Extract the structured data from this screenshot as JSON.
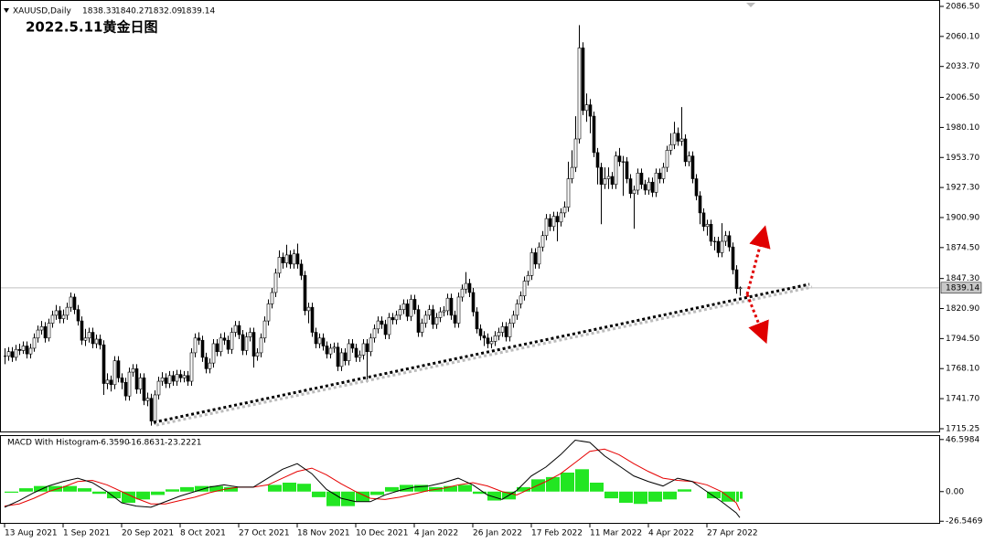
{
  "header": {
    "symbol": "XAUUSD,Daily",
    "ohlc": [
      "1838.33",
      "1840.27",
      "1832.09",
      "1839.14"
    ],
    "title": "2022.5.11黄金日图"
  },
  "chart_data": [
    {
      "type": "candlestick",
      "close": [
        1779,
        1783,
        1778,
        1785,
        1784,
        1788,
        1781,
        1786,
        1795,
        1802,
        1805,
        1795,
        1808,
        1815,
        1819,
        1812,
        1815,
        1822,
        1831,
        1820,
        1810,
        1793,
        1795,
        1800,
        1790,
        1794,
        1789,
        1755,
        1758,
        1754,
        1775,
        1760,
        1756,
        1744,
        1765,
        1768,
        1750,
        1760,
        1740,
        1742,
        1722,
        1745,
        1757,
        1760,
        1755,
        1762,
        1757,
        1763,
        1760,
        1762,
        1757,
        1782,
        1795,
        1793,
        1778,
        1768,
        1773,
        1790,
        1783,
        1795,
        1793,
        1785,
        1800,
        1806,
        1798,
        1784,
        1796,
        1800,
        1779,
        1782,
        1795,
        1810,
        1825,
        1835,
        1852,
        1866,
        1861,
        1868,
        1860,
        1869,
        1860,
        1850,
        1819,
        1822,
        1800,
        1790,
        1795,
        1788,
        1781,
        1786,
        1787,
        1770,
        1782,
        1775,
        1790,
        1786,
        1778,
        1780,
        1790,
        1783,
        1795,
        1803,
        1810,
        1807,
        1798,
        1813,
        1811,
        1815,
        1820,
        1825,
        1814,
        1829,
        1820,
        1800,
        1808,
        1815,
        1820,
        1807,
        1813,
        1818,
        1819,
        1830,
        1815,
        1808,
        1831,
        1838,
        1843,
        1835,
        1818,
        1803,
        1797,
        1795,
        1790,
        1792,
        1797,
        1800,
        1805,
        1796,
        1808,
        1815,
        1825,
        1832,
        1845,
        1850,
        1870,
        1860,
        1875,
        1885,
        1900,
        1893,
        1902,
        1897,
        1905,
        1910,
        1935,
        1945,
        1970,
        2050,
        1995,
        2000,
        1990,
        1958,
        1945,
        1930,
        1935,
        1937,
        1930,
        1955,
        1950,
        1950,
        1935,
        1922,
        1925,
        1940,
        1930,
        1925,
        1932,
        1923,
        1940,
        1935,
        1945,
        1960,
        1965,
        1975,
        1968,
        1970,
        1950,
        1955,
        1935,
        1920,
        1905,
        1893,
        1895,
        1880,
        1880,
        1870,
        1880,
        1885,
        1875,
        1855,
        1838.33,
        1839.14
      ],
      "high": [
        1786,
        1787,
        1787,
        1789,
        1790,
        1792,
        1792,
        1790,
        1799,
        1806,
        1810,
        1809,
        1812,
        1819,
        1824,
        1823,
        1820,
        1826,
        1835,
        1834,
        1824,
        1814,
        1803,
        1804,
        1804,
        1798,
        1798,
        1793,
        1764,
        1762,
        1779,
        1779,
        1764,
        1760,
        1769,
        1772,
        1772,
        1764,
        1764,
        1747,
        1746,
        1749,
        1761,
        1765,
        1764,
        1766,
        1766,
        1767,
        1767,
        1766,
        1766,
        1786,
        1799,
        1800,
        1797,
        1782,
        1777,
        1794,
        1794,
        1799,
        1800,
        1797,
        1804,
        1810,
        1810,
        1802,
        1800,
        1804,
        1804,
        1786,
        1799,
        1814,
        1829,
        1839,
        1856,
        1872,
        1870,
        1877,
        1872,
        1873,
        1878,
        1864,
        1854,
        1826,
        1826,
        1804,
        1799,
        1799,
        1792,
        1790,
        1791,
        1791,
        1786,
        1786,
        1794,
        1794,
        1790,
        1784,
        1794,
        1794,
        1799,
        1807,
        1814,
        1814,
        1811,
        1817,
        1817,
        1819,
        1824,
        1829,
        1829,
        1833,
        1833,
        1824,
        1812,
        1819,
        1824,
        1824,
        1817,
        1822,
        1823,
        1834,
        1834,
        1819,
        1835,
        1842,
        1853,
        1847,
        1839,
        1822,
        1807,
        1801,
        1799,
        1796,
        1801,
        1804,
        1809,
        1809,
        1812,
        1819,
        1829,
        1836,
        1849,
        1854,
        1874,
        1874,
        1879,
        1889,
        1904,
        1904,
        1906,
        1906,
        1909,
        1915,
        1950,
        1960,
        1990,
        2070,
        2055,
        2010,
        2005,
        1994,
        1962,
        1949,
        1945,
        1945,
        1941,
        1959,
        1962,
        1955,
        1954,
        1939,
        1929,
        1944,
        1944,
        1934,
        1936,
        1936,
        1944,
        1944,
        1949,
        1964,
        1975,
        1985,
        1980,
        1998,
        1974,
        1959,
        1959,
        1939,
        1924,
        1909,
        1899,
        1899,
        1884,
        1884,
        1896,
        1889,
        1889,
        1879,
        1859,
        1840.27
      ],
      "low": [
        1772,
        1775,
        1774,
        1775,
        1780,
        1781,
        1777,
        1777,
        1783,
        1791,
        1798,
        1791,
        1792,
        1804,
        1811,
        1808,
        1808,
        1811,
        1818,
        1816,
        1806,
        1789,
        1788,
        1791,
        1786,
        1786,
        1785,
        1745,
        1750,
        1748,
        1750,
        1756,
        1750,
        1740,
        1740,
        1761,
        1746,
        1746,
        1736,
        1735,
        1718,
        1719,
        1741,
        1753,
        1751,
        1751,
        1753,
        1753,
        1756,
        1756,
        1753,
        1753,
        1778,
        1789,
        1774,
        1764,
        1764,
        1769,
        1779,
        1779,
        1789,
        1781,
        1781,
        1796,
        1794,
        1780,
        1780,
        1792,
        1769,
        1775,
        1778,
        1791,
        1806,
        1821,
        1831,
        1848,
        1856,
        1857,
        1856,
        1856,
        1856,
        1846,
        1815,
        1808,
        1796,
        1786,
        1786,
        1784,
        1777,
        1777,
        1782,
        1766,
        1766,
        1771,
        1771,
        1782,
        1774,
        1774,
        1776,
        1756,
        1779,
        1791,
        1799,
        1803,
        1794,
        1794,
        1807,
        1807,
        1811,
        1816,
        1810,
        1810,
        1816,
        1796,
        1796,
        1804,
        1811,
        1803,
        1803,
        1809,
        1814,
        1815,
        1811,
        1804,
        1804,
        1827,
        1834,
        1831,
        1814,
        1799,
        1793,
        1788,
        1786,
        1786,
        1788,
        1793,
        1796,
        1792,
        1792,
        1804,
        1811,
        1821,
        1828,
        1841,
        1846,
        1856,
        1856,
        1871,
        1881,
        1889,
        1889,
        1880,
        1893,
        1901,
        1906,
        1931,
        1941,
        1966,
        1991,
        1985,
        1975,
        1954,
        1930,
        1895,
        1926,
        1926,
        1926,
        1926,
        1946,
        1920,
        1931,
        1918,
        1891,
        1921,
        1926,
        1921,
        1921,
        1919,
        1919,
        1931,
        1931,
        1941,
        1956,
        1961,
        1964,
        1964,
        1946,
        1946,
        1931,
        1916,
        1895,
        1889,
        1885,
        1876,
        1872,
        1866,
        1866,
        1876,
        1871,
        1851,
        1834,
        1832.09
      ],
      "ylim": [
        1715.25,
        2086.5
      ],
      "yticks": [
        {
          "value": 2086.5,
          "label": "2086.50"
        },
        {
          "value": 2060.1,
          "label": "2060.10"
        },
        {
          "value": 2033.7,
          "label": "2033.70"
        },
        {
          "value": 2006.5,
          "label": "2006.50"
        },
        {
          "value": 1980.1,
          "label": "1980.10"
        },
        {
          "value": 1953.7,
          "label": "1953.70"
        },
        {
          "value": 1927.3,
          "label": "1927.30"
        },
        {
          "value": 1900.9,
          "label": "1900.90"
        },
        {
          "value": 1874.5,
          "label": "1874.50"
        },
        {
          "value": 1847.3,
          "label": "1847.30"
        },
        {
          "value": 1820.9,
          "label": "1820.90"
        },
        {
          "value": 1794.5,
          "label": "1794.50"
        },
        {
          "value": 1768.1,
          "label": "1768.10"
        },
        {
          "value": 1741.7,
          "label": "1741.70"
        },
        {
          "value": 1715.25,
          "label": "1715.25"
        }
      ],
      "xticks": [
        {
          "value": 0,
          "label": "13 Aug 2021"
        },
        {
          "value": 16,
          "label": "1 Sep 2021"
        },
        {
          "value": 32,
          "label": "20 Sep 2021"
        },
        {
          "value": 48,
          "label": "8 Oct 2021"
        },
        {
          "value": 64,
          "label": "27 Oct 2021"
        },
        {
          "value": 80,
          "label": "18 Nov 2021"
        },
        {
          "value": 96,
          "label": "10 Dec 2021"
        },
        {
          "value": 112,
          "label": "4 Jan 2022"
        },
        {
          "value": 128,
          "label": "26 Jan 2022"
        },
        {
          "value": 144,
          "label": "17 Feb 2022"
        },
        {
          "value": 160,
          "label": "11 Mar 2022"
        },
        {
          "value": 176,
          "label": "4 Apr 2022"
        },
        {
          "value": 192,
          "label": "27 Apr 2022"
        }
      ]
    },
    {
      "type": "macd",
      "title": "MACD With Histogram",
      "readout": [
        "-6.3590",
        "-16.8631",
        "-23.2221"
      ],
      "x": [
        0,
        4,
        8,
        12,
        16,
        20,
        24,
        28,
        32,
        36,
        40,
        44,
        48,
        52,
        56,
        60,
        64,
        68,
        72,
        76,
        80,
        84,
        88,
        92,
        96,
        100,
        104,
        108,
        112,
        116,
        120,
        124,
        128,
        132,
        136,
        140,
        144,
        148,
        152,
        156,
        160,
        164,
        168,
        172,
        176,
        180,
        184,
        188,
        192,
        196,
        200,
        201
      ],
      "histogram": [
        -1,
        3,
        5,
        5,
        5,
        3,
        -2,
        -6,
        -10,
        -7,
        -3,
        2,
        4,
        5,
        5,
        4,
        0,
        0,
        6,
        8,
        7,
        -5,
        -13,
        -13,
        -9,
        -3,
        4,
        6,
        6,
        4,
        5,
        6,
        -2,
        -8,
        -7,
        4,
        11,
        13,
        17,
        20,
        8,
        -6,
        -10,
        -11,
        -9,
        -7,
        2,
        0,
        -6,
        -9,
        -9,
        -6.359
      ],
      "macd": [
        -14,
        -8,
        -1,
        5,
        9,
        12,
        8,
        0,
        -10,
        -13,
        -14,
        -9,
        -4,
        0,
        4,
        6,
        4,
        4,
        12,
        20,
        25,
        16,
        2,
        -6,
        -9,
        -9,
        -3,
        1,
        4,
        5,
        8,
        12,
        6,
        -3,
        -7,
        1,
        14,
        22,
        33,
        46,
        44,
        32,
        23,
        14,
        9,
        5,
        12,
        9,
        0,
        -9,
        -19,
        -23.2221
      ],
      "signal": [
        -13,
        -11,
        -6,
        0,
        4,
        9,
        10,
        6,
        0,
        -6,
        -11,
        -11,
        -8,
        -5,
        -1,
        2,
        4,
        4,
        6,
        12,
        18,
        21,
        15,
        7,
        0,
        -6,
        -7,
        -5,
        -2,
        1,
        3,
        6,
        8,
        5,
        0,
        -3,
        3,
        9,
        16,
        26,
        36,
        38,
        33,
        25,
        18,
        12,
        10,
        9,
        6,
        0,
        -10,
        -16.8631
      ],
      "histogram_color": "#22e622",
      "macd_color": "#000000",
      "signal_color": "#e60000",
      "ylim": [
        -28,
        49.7
      ],
      "yticks": [
        {
          "value": 46.5984,
          "label": "46.5984"
        },
        {
          "value": 0,
          "label": "0.00"
        },
        {
          "value": -26.5469,
          "label": "-26.5469"
        }
      ]
    }
  ]
}
